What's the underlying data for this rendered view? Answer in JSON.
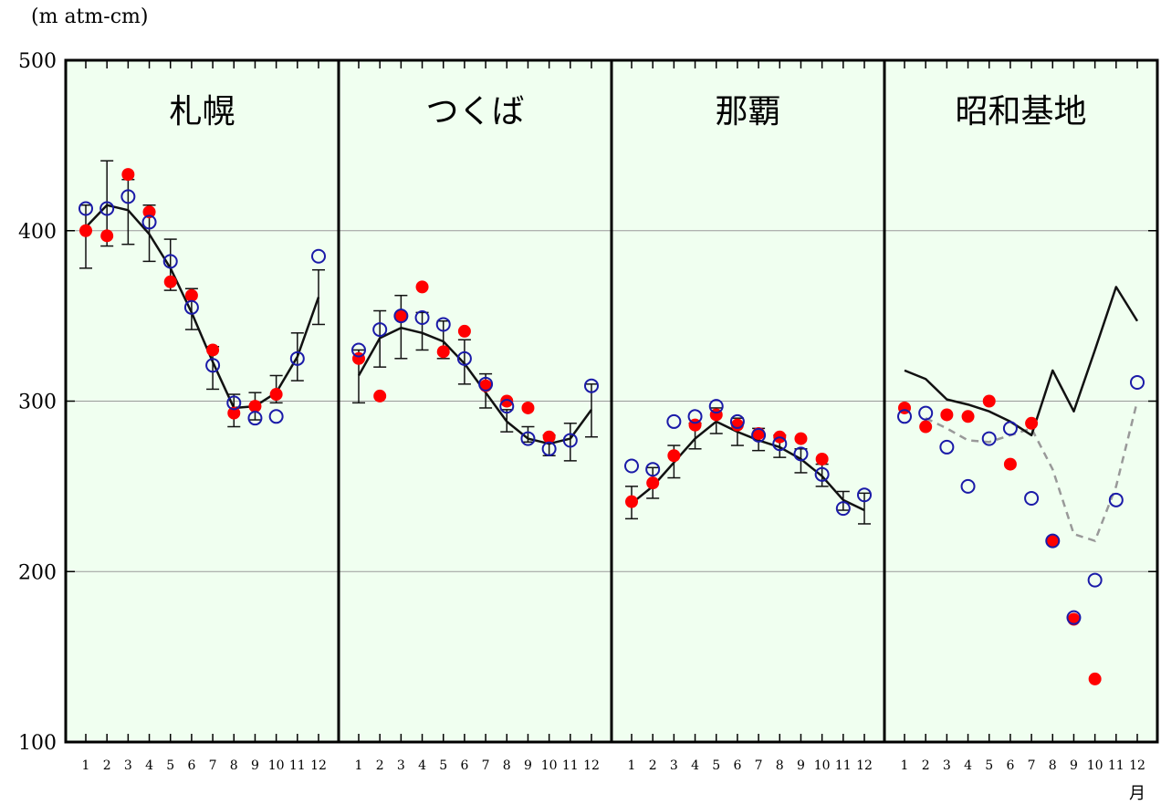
{
  "unit_label": "(m atm-cm)",
  "month_unit": "月",
  "colors": {
    "panel_bg": "#f0fff0",
    "grid": "#9a9a9a",
    "axis": "#000000",
    "series_mean": "#111111",
    "series_open": "#1a1aa8",
    "series_filled": "#ff0000",
    "series_dashed": "#999999"
  },
  "chart_data": {
    "type": "line",
    "ylim": [
      100,
      500
    ],
    "y_ticks": [
      100,
      200,
      300,
      400,
      500
    ],
    "grid": true,
    "months": [
      "1",
      "2",
      "3",
      "4",
      "5",
      "6",
      "7",
      "8",
      "9",
      "10",
      "11",
      "12"
    ],
    "panels": [
      {
        "title": "札幌",
        "mean": [
          402,
          415,
          412,
          398,
          378,
          352,
          323,
          296,
          297,
          305,
          326,
          361
        ],
        "err_low": [
          378,
          391,
          392,
          382,
          365,
          342,
          307,
          285,
          289,
          299,
          312,
          345
        ],
        "err_high": [
          415,
          441,
          430,
          415,
          395,
          366,
          332,
          304,
          305,
          315,
          340,
          377
        ],
        "open_circles": [
          413,
          413,
          420,
          405,
          382,
          355,
          321,
          299,
          290,
          291,
          325,
          385
        ],
        "filled_dots": [
          400,
          397,
          433,
          411,
          370,
          362,
          330,
          293,
          297,
          304,
          null,
          null
        ]
      },
      {
        "title": "つくば",
        "mean": [
          315,
          337,
          343,
          340,
          335,
          322,
          305,
          288,
          278,
          275,
          278,
          295
        ],
        "err_low": [
          299,
          320,
          325,
          330,
          325,
          310,
          296,
          282,
          276,
          268,
          265,
          279
        ],
        "err_high": [
          330,
          353,
          362,
          352,
          347,
          336,
          316,
          295,
          285,
          280,
          287,
          310
        ],
        "open_circles": [
          330,
          342,
          350,
          349,
          345,
          325,
          310,
          297,
          278,
          272,
          277,
          309
        ],
        "filled_dots": [
          325,
          303,
          350,
          367,
          329,
          341,
          309,
          300,
          296,
          279,
          null,
          null
        ]
      },
      {
        "title": "那覇",
        "mean": [
          240,
          250,
          264,
          278,
          288,
          282,
          277,
          273,
          266,
          256,
          242,
          236
        ],
        "err_low": [
          231,
          243,
          255,
          272,
          281,
          274,
          271,
          267,
          258,
          250,
          236,
          228
        ],
        "err_high": [
          250,
          261,
          274,
          287,
          296,
          290,
          284,
          280,
          272,
          263,
          247,
          246
        ],
        "open_circles": [
          262,
          260,
          288,
          291,
          297,
          288,
          280,
          275,
          269,
          257,
          237,
          245
        ],
        "filled_dots": [
          241,
          252,
          268,
          286,
          292,
          286,
          281,
          279,
          278,
          266,
          null,
          null
        ]
      },
      {
        "title": "昭和基地",
        "mean": [
          318,
          313,
          301,
          298,
          294,
          288,
          280,
          318,
          294,
          330,
          367,
          347
        ],
        "dashed": [
          null,
          290,
          284,
          277,
          276,
          280,
          284,
          260,
          222,
          218,
          250,
          300
        ],
        "open_circles": [
          291,
          293,
          273,
          250,
          278,
          284,
          243,
          218,
          173,
          195,
          242,
          311
        ],
        "filled_dots": [
          296,
          285,
          292,
          291,
          300,
          263,
          287,
          218,
          172,
          137,
          null,
          null
        ]
      }
    ]
  }
}
